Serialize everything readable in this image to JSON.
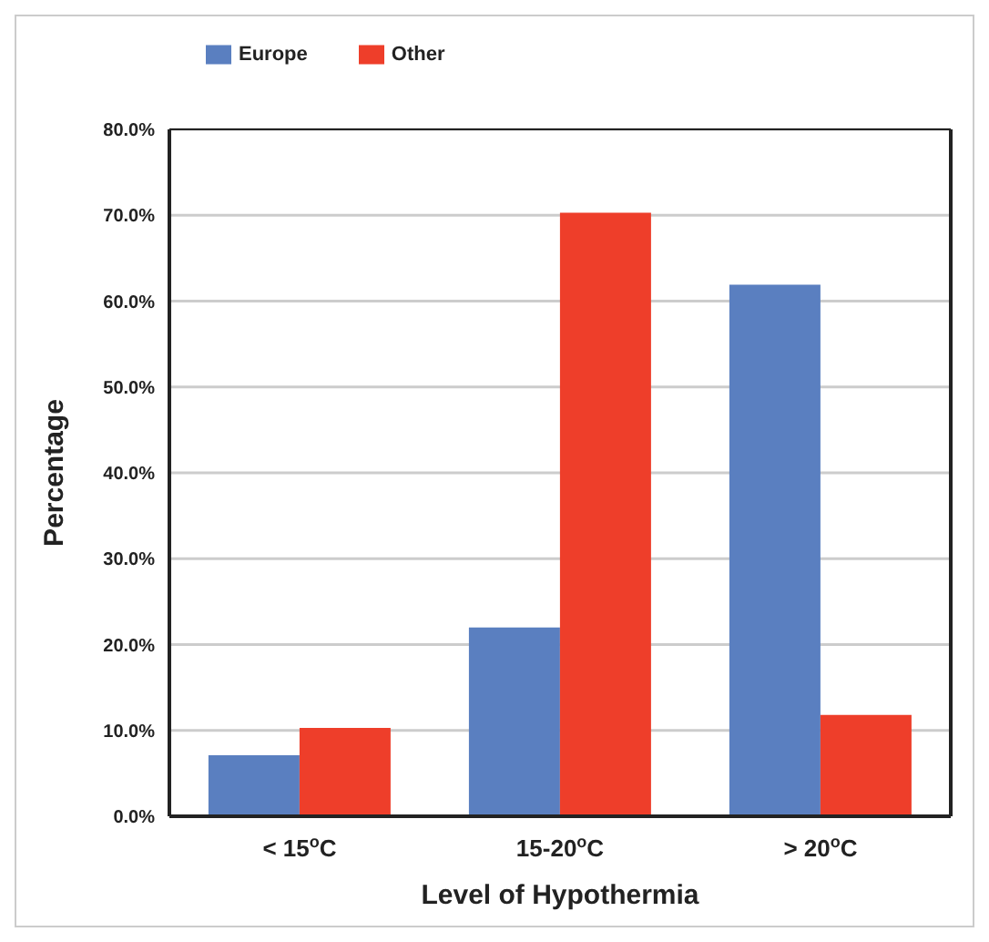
{
  "chart_data": {
    "type": "bar",
    "xlabel": "Level of Hypothermia",
    "ylabel": "Percentage",
    "categories": [
      "< 15$^{o}$C",
      "15-20$^{o}$C",
      "> 20$^{o}$C"
    ],
    "series": [
      {
        "name": "Europe",
        "color": "#5a7fc0",
        "values": [
          7.1,
          22.0,
          61.9
        ]
      },
      {
        "name": "Other",
        "color": "#ee3e2a",
        "values": [
          10.3,
          70.3,
          11.8
        ]
      }
    ],
    "ylim": [
      0,
      80
    ],
    "yticks": [
      {
        "value": 0,
        "label": "0.0%"
      },
      {
        "value": 10,
        "label": "10.0%"
      },
      {
        "value": 20,
        "label": "20.0%"
      },
      {
        "value": 30,
        "label": "30.0%"
      },
      {
        "value": 40,
        "label": "40.0%"
      },
      {
        "value": 50,
        "label": "50.0%"
      },
      {
        "value": 60,
        "label": "60.0%"
      },
      {
        "value": 70,
        "label": "70.0%"
      },
      {
        "value": 80,
        "label": "80.0%"
      }
    ],
    "grid": "y",
    "legend": "top left"
  }
}
